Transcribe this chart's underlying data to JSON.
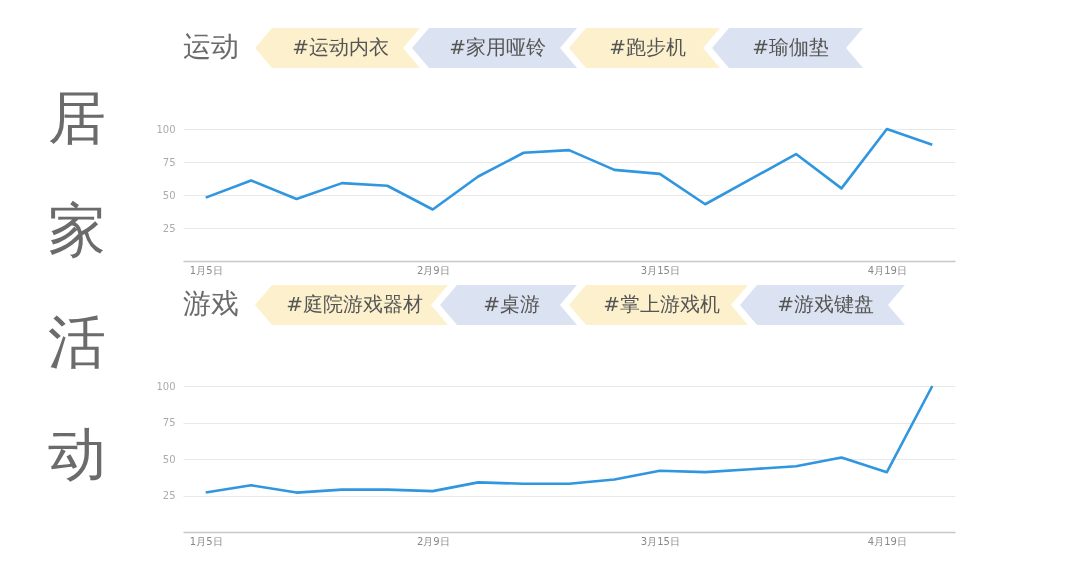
{
  "chart_data": [
    {
      "type": "other",
      "title": "居家活动"
    },
    {
      "type": "line",
      "title": "运动",
      "annotations": [
        "#运动内衣",
        "#家用哑铃",
        "#跑步机",
        "#瑜伽垫"
      ],
      "categories": [
        "1月5日",
        null,
        null,
        null,
        null,
        "2月9日",
        null,
        null,
        null,
        null,
        "3月15日",
        null,
        null,
        null,
        null,
        "4月19日",
        null
      ],
      "values": [
        48,
        61,
        47,
        59,
        57,
        39,
        64,
        82,
        84,
        69,
        66,
        43,
        62,
        81,
        55,
        100,
        88
      ],
      "color": "#2f96df",
      "ylim": [
        0,
        100
      ],
      "yticks": [
        25,
        50,
        75,
        100
      ],
      "grid": "y",
      "marker": "none"
    },
    {
      "type": "line",
      "title": "游戏",
      "annotations": [
        "#庭院游戏器材",
        "#桌游",
        "#掌上游戏机",
        "#游戏键盘"
      ],
      "categories": [
        "1月5日",
        null,
        null,
        null,
        null,
        "2月9日",
        null,
        null,
        null,
        null,
        "3月15日",
        null,
        null,
        null,
        null,
        "4月19日",
        null
      ],
      "values": [
        27,
        32,
        27,
        29,
        29,
        28,
        34,
        33,
        33,
        36,
        42,
        41,
        43,
        45,
        51,
        41,
        100
      ],
      "color": "#2f96df",
      "ylim": [
        0,
        100
      ],
      "yticks": [
        25,
        50,
        75,
        100
      ],
      "grid": "y",
      "marker": "none"
    }
  ]
}
